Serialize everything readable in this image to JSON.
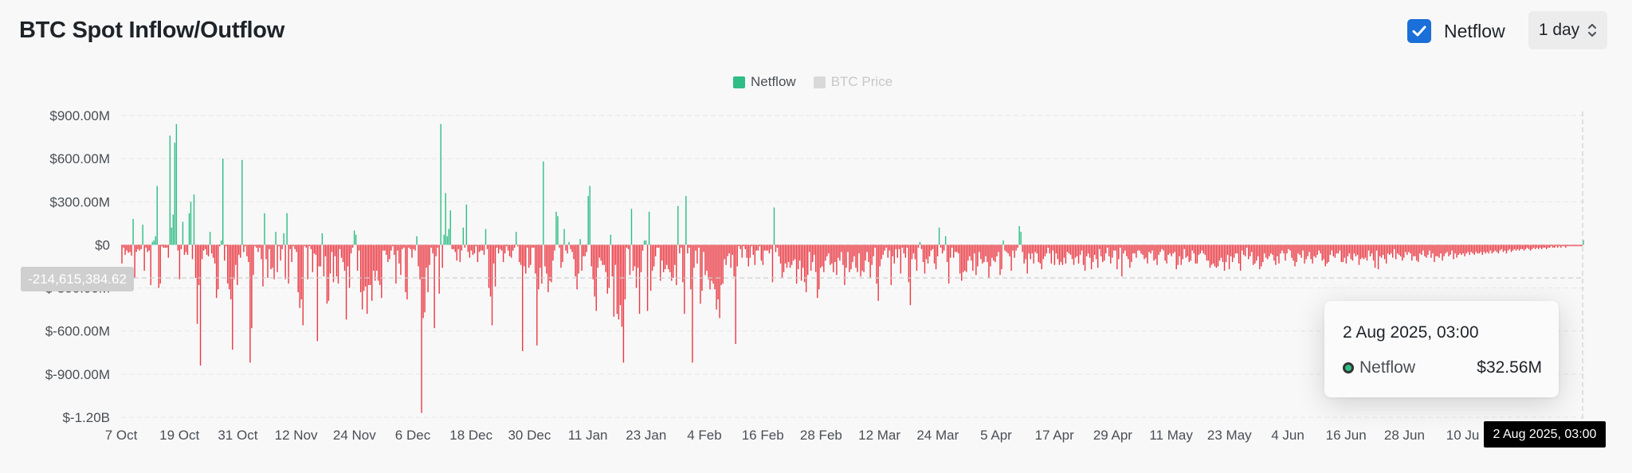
{
  "header": {
    "title": "BTC Spot Inflow/Outflow",
    "netflow_label": "Netflow",
    "netflow_checked": true,
    "interval_value": "1 day"
  },
  "legend": [
    {
      "label": "Netflow",
      "color": "#2ebd85",
      "active": true
    },
    {
      "label": "BTC Price",
      "color": "#d9d9d9",
      "active": false
    }
  ],
  "crosshair": {
    "y_value_label": "-214,615,384.62",
    "x_date_label": "2 Aug 2025, 03:00"
  },
  "tooltip": {
    "date": "2 Aug 2025, 03:00",
    "series_name": "Netflow",
    "value": "$32.56M"
  },
  "colors": {
    "positive": "#2ebd85",
    "negative": "#ea3943",
    "accent": "#1a6fd8"
  },
  "chart_data": {
    "type": "bar",
    "title": "BTC Spot Inflow/Outflow",
    "series_name": "Netflow",
    "unit": "USD (millions)",
    "ylim": [
      -1200,
      900
    ],
    "y_ticks": [
      {
        "value": 900,
        "label": "$900.00M"
      },
      {
        "value": 600,
        "label": "$600.00M"
      },
      {
        "value": 300,
        "label": "$300.00M"
      },
      {
        "value": 0,
        "label": "$0"
      },
      {
        "value": -300,
        "label": "$-300.00M"
      },
      {
        "value": -600,
        "label": "$-600.00M"
      },
      {
        "value": -900,
        "label": "$-900.00M"
      },
      {
        "value": -1200,
        "label": "$-1.20B"
      }
    ],
    "x_ticks": [
      "7 Oct",
      "19 Oct",
      "31 Oct",
      "12 Nov",
      "24 Nov",
      "6 Dec",
      "18 Dec",
      "30 Dec",
      "11 Jan",
      "23 Jan",
      "4 Feb",
      "16 Feb",
      "28 Feb",
      "12 Mar",
      "24 Mar",
      "5 Apr",
      "17 Apr",
      "29 Apr",
      "11 May",
      "23 May",
      "4 Jun",
      "16 Jun",
      "28 Jun",
      "10 Ju"
    ],
    "x_start": "2024-10-07",
    "values": [
      -130,
      -20,
      -70,
      -40,
      -55,
      -50,
      -75,
      180,
      -230,
      -50,
      -30,
      -40,
      -30,
      140,
      -180,
      -20,
      -50,
      -40,
      -280,
      20,
      30,
      60,
      410,
      -300,
      -270,
      -10,
      -20,
      -20,
      -20,
      -90,
      760,
      120,
      210,
      710,
      840,
      -40,
      -240,
      -30,
      160,
      -70,
      -50,
      -70,
      220,
      300,
      -100,
      350,
      -230,
      -550,
      -280,
      -840,
      -100,
      -40,
      -30,
      -70,
      -80,
      90,
      -60,
      -90,
      -130,
      -370,
      -310,
      -10,
      30,
      600,
      -110,
      -10,
      -270,
      -310,
      -380,
      -730,
      -240,
      -140,
      -280,
      -70,
      -90,
      590,
      -50,
      -10,
      -80,
      -120,
      -820,
      -580,
      -210,
      -10,
      -20,
      -50,
      -20,
      -100,
      -290,
      220,
      -100,
      -230,
      -30,
      -170,
      -160,
      -240,
      90,
      -190,
      -10,
      -110,
      -30,
      80,
      -240,
      220,
      -270,
      -30,
      -120,
      -10,
      -30,
      -50,
      -330,
      -440,
      -380,
      -560,
      -10,
      -20,
      -240,
      -10,
      -30,
      -190,
      -60,
      -70,
      -670,
      -150,
      -150,
      80,
      -220,
      -80,
      -410,
      -390,
      -200,
      -50,
      -260,
      -80,
      -220,
      -270,
      -30,
      -90,
      -120,
      -180,
      -520,
      -150,
      -300,
      -60,
      -20,
      100,
      70,
      -180,
      -40,
      -330,
      -450,
      -320,
      -290,
      -480,
      -280,
      -280,
      -390,
      -180,
      -250,
      -180,
      -250,
      -280,
      -370,
      -40,
      -40,
      -70,
      -120,
      -100,
      -40,
      -10,
      -70,
      -270,
      -40,
      -130,
      -210,
      -30,
      -20,
      -330,
      -380,
      -20,
      -30,
      -90,
      -30,
      -40,
      60,
      -150,
      -240,
      -1170,
      -510,
      -470,
      -160,
      -330,
      -140,
      -20,
      -60,
      -580,
      -80,
      -20,
      -340,
      840,
      -160,
      70,
      360,
      60,
      110,
      240,
      -30,
      -30,
      -50,
      -110,
      -30,
      -120,
      -40,
      120,
      -20,
      280,
      -50,
      -90,
      -40,
      -70,
      -60,
      -10,
      -120,
      -50,
      -40,
      -40,
      -70,
      110,
      -30,
      -300,
      -360,
      -560,
      -130,
      -290,
      -20,
      -60,
      -30,
      -40,
      -120,
      -60,
      -10,
      -40,
      -80,
      -90,
      -40,
      -20,
      90,
      -10,
      -120,
      -140,
      -740,
      -150,
      -200,
      -20,
      -160,
      -140,
      -20,
      -20,
      -200,
      -700,
      -310,
      -160,
      -270,
      580,
      -150,
      -200,
      -330,
      -250,
      -260,
      -110,
      -40,
      230,
      200,
      -20,
      -160,
      -120,
      110,
      -40,
      -60,
      20,
      -30,
      -50,
      -100,
      -220,
      -310,
      -200,
      40,
      -180,
      -80,
      -80,
      -50,
      340,
      410,
      -150,
      -240,
      -360,
      -460,
      -160,
      -90,
      -110,
      -140,
      -140,
      -190,
      -340,
      -300,
      70,
      -220,
      -500,
      -140,
      -480,
      -520,
      -420,
      -570,
      -820,
      -380,
      -20,
      -30,
      -210,
      250,
      -180,
      -150,
      -300,
      -160,
      -480,
      -190,
      -40,
      30,
      30,
      -460,
      230,
      -320,
      -180,
      -150,
      -80,
      -20,
      -20,
      -250,
      -110,
      -190,
      -170,
      -140,
      -170,
      -190,
      -250,
      -230,
      -140,
      -280,
      270,
      -60,
      -20,
      -260,
      -480,
      340,
      -60,
      -20,
      -310,
      -820,
      -160,
      -40,
      -130,
      -20,
      -410,
      -320,
      -50,
      -210,
      -180,
      -240,
      -310,
      -250,
      -270,
      -310,
      -450,
      -380,
      -510,
      -280,
      -270,
      -100,
      -140,
      -80,
      -60,
      -160,
      -70,
      -220,
      -690,
      -150,
      -10,
      -30,
      -90,
      -10,
      -30,
      -90,
      -150,
      -90,
      -10,
      -70,
      -140,
      -40,
      -40,
      -10,
      -110,
      -140,
      -40,
      -40,
      -40,
      -60,
      -30,
      -260,
      260,
      -50,
      -20,
      -80,
      -130,
      -230,
      -190,
      -130,
      -160,
      -120,
      -160,
      -140,
      -110,
      -100,
      -270,
      -170,
      -110,
      -250,
      -160,
      -260,
      -330,
      -210,
      -50,
      -180,
      -120,
      -70,
      -190,
      -370,
      -310,
      -160,
      -150,
      -190,
      -110,
      -80,
      -60,
      -140,
      -130,
      -190,
      -120,
      -210,
      -90,
      -110,
      -50,
      -140,
      -280,
      -160,
      -50,
      -190,
      -170,
      -120,
      -80,
      -160,
      -190,
      -60,
      -220,
      -180,
      -190,
      -110,
      -50,
      -120,
      -230,
      -140,
      -80,
      -20,
      -270,
      -390,
      -150,
      -100,
      -70,
      -40,
      -20,
      -90,
      -40,
      -280,
      -80,
      -130,
      -30,
      -90,
      -30,
      -200,
      -20,
      -60,
      -90,
      -20,
      -260,
      -420,
      -100,
      -60,
      -100,
      -180,
      -20,
      20,
      -30,
      -120,
      -200,
      -100,
      -130,
      -80,
      -40,
      -30,
      -130,
      -170,
      -80,
      120,
      -20,
      -60,
      -40,
      60,
      -120,
      -270,
      -90,
      -20,
      -90,
      -50,
      -50,
      -60,
      -200,
      -250,
      -190,
      -180,
      -190,
      -110,
      -80,
      -110,
      -180,
      -60,
      -210,
      -150,
      -50,
      -100,
      -130,
      -120,
      -80,
      -120,
      -230,
      -150,
      -90,
      -110,
      -120,
      -80,
      -50,
      -210,
      -170,
      30,
      -40,
      -50,
      -60,
      -80,
      -180,
      -40,
      -90,
      -40,
      -20,
      130,
      90,
      -50,
      -130,
      -100,
      -200,
      -60,
      -100,
      -60,
      -130,
      -50,
      -60,
      -120,
      -130,
      -170,
      -100,
      -80,
      -60,
      -20,
      -60,
      -130,
      -40,
      -140,
      -60,
      -100,
      -140,
      -120,
      -140,
      -90,
      -130,
      -50,
      -60,
      -70,
      -100,
      -140,
      -90,
      -80,
      -130,
      -70,
      -40,
      -140,
      -180,
      -80,
      -60,
      -90,
      -170,
      -120,
      -70,
      -100,
      -160,
      -30,
      -80,
      -120,
      -110,
      -60,
      -20,
      -80,
      -130,
      -90,
      -40,
      -40,
      -170,
      -100,
      -20,
      -220,
      -60,
      -40,
      -80,
      -100,
      -160,
      -120,
      -60,
      -60,
      -90,
      -40,
      -40,
      -60,
      -70,
      -100,
      -90,
      -130,
      -50,
      -60,
      -40,
      -110,
      -100,
      -140,
      -70,
      -50,
      -30,
      -40,
      -110,
      -130,
      -70,
      -60,
      -80,
      -60,
      -50,
      -170,
      -140,
      -80,
      -140,
      -100,
      -30,
      -90,
      -80,
      -120,
      -110,
      -40,
      -60,
      -130,
      -130,
      -70,
      -60,
      -40,
      -60,
      -70,
      -110,
      -110,
      -160,
      -140,
      -130,
      -150,
      -160,
      -150,
      -110,
      -90,
      -120,
      -180,
      -120,
      -70,
      -170,
      -80,
      -120,
      -90,
      -60,
      -60,
      -130,
      -180,
      -40,
      -70,
      -80,
      -20,
      -100,
      -80,
      -50,
      -140,
      -130,
      -110,
      -80,
      -170,
      -150,
      -120,
      -60,
      -90,
      -100,
      -80,
      -60,
      -70,
      -110,
      -140,
      -80,
      -130,
      -60,
      -40,
      -60,
      -110,
      -60,
      -30,
      -40,
      -90,
      -110,
      -150,
      -120,
      -60,
      -70,
      -90,
      -40,
      -130,
      -100,
      -80,
      -50,
      -100,
      -130,
      -80,
      -90,
      -70,
      -40,
      -60,
      -110,
      -100,
      -150,
      -130,
      -120,
      -70,
      -40,
      -80,
      -90,
      -60,
      -60,
      -40,
      -120,
      -120,
      -90,
      -130,
      -80,
      -60,
      -100,
      -110,
      -60,
      -80,
      -70,
      -140,
      -100,
      -90,
      -100,
      -90,
      -110,
      -40,
      -80,
      -60,
      -110,
      -160,
      -40,
      -170,
      -80,
      -90,
      -70,
      -100,
      -130,
      -60,
      -70,
      -60,
      -90,
      -30,
      -100,
      -60,
      -70,
      -80,
      -110,
      -90,
      -50,
      -70,
      -50,
      -60,
      -110,
      -80,
      -80,
      -110,
      -120,
      -60,
      -70,
      -40,
      -80,
      -90,
      -70,
      -40,
      -90,
      -60,
      -120,
      -80,
      -80,
      -90,
      -60,
      -110,
      -80,
      -60,
      -50,
      -80,
      -70,
      -40,
      -100,
      -60,
      -90,
      -70,
      -60,
      -70,
      -60,
      -80,
      -60,
      -50,
      -70,
      -50,
      -60,
      -70,
      -50,
      -60,
      -60,
      -50,
      -70,
      -50,
      -60,
      -50,
      -60,
      -40,
      -60,
      -50,
      -40,
      -50,
      -60,
      -40,
      -30,
      -50,
      -40,
      -60,
      -40,
      -30,
      -50,
      -40,
      -30,
      -40,
      -30,
      -40,
      -30,
      -30,
      -40,
      -30,
      -20,
      -30,
      -40,
      -30,
      -20,
      -30,
      -20,
      -30,
      -20,
      -30,
      -20,
      -20,
      -30,
      -20,
      -20,
      -10,
      -20,
      -20,
      -10,
      -20,
      -10,
      -20,
      -10,
      -10,
      -20,
      -10,
      -10,
      -10,
      -10,
      -10,
      -10,
      -10,
      -10,
      -10,
      -10,
      33
    ]
  }
}
